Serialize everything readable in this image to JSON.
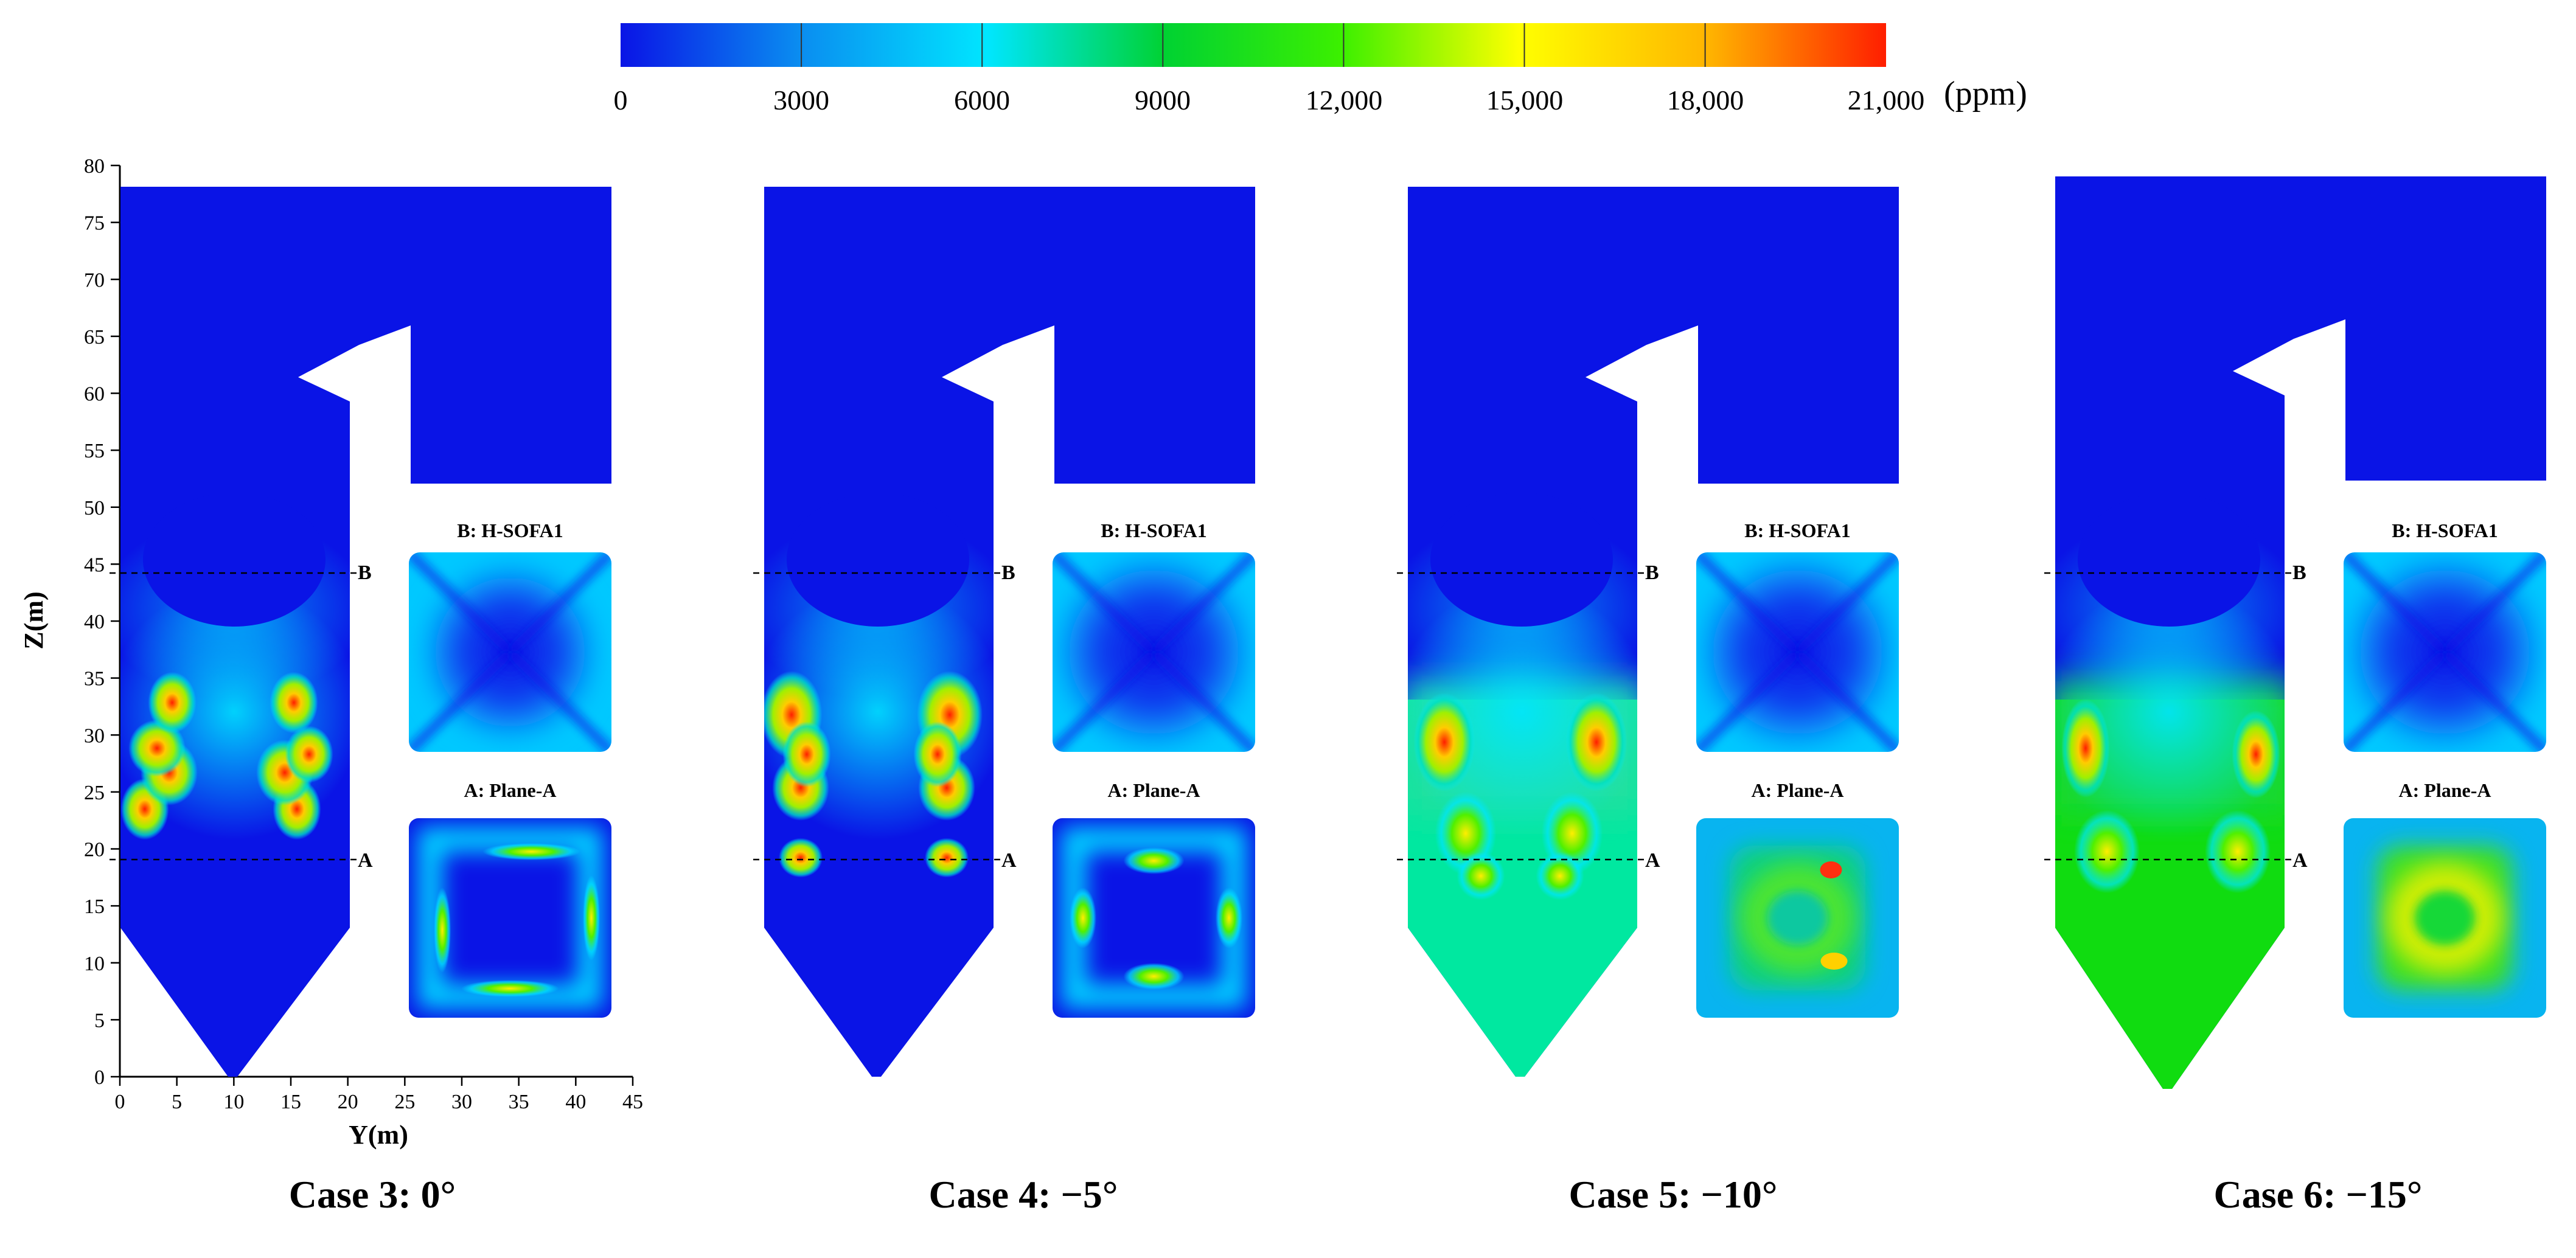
{
  "colorbar": {
    "unit": "(ppm)",
    "tick_labels": [
      "0",
      "3000",
      "6000",
      "9000",
      "12,000",
      "15,000",
      "18,000",
      "21,000"
    ],
    "colors": [
      "#0a14e6",
      "#0a8cf0",
      "#00e6ff",
      "#00d232",
      "#3cf000",
      "#ffff00",
      "#ffb400",
      "#ff1e00"
    ]
  },
  "axes": {
    "z_label": "Z(m)",
    "y_label": "Y(m)",
    "z_ticks": [
      "0",
      "5",
      "10",
      "15",
      "20",
      "25",
      "30",
      "35",
      "40",
      "45",
      "50",
      "55",
      "60",
      "65",
      "70",
      "75",
      "80"
    ],
    "y_ticks": [
      "0",
      "5",
      "10",
      "15",
      "20",
      "25",
      "30",
      "35",
      "40",
      "45"
    ]
  },
  "plane_markers": {
    "upper": "B",
    "lower": "A"
  },
  "cases": [
    {
      "title": "Case 3: 0°",
      "section_b": "B: H-SOFA1",
      "section_a": "A: Plane-A",
      "hopper_fill": "low"
    },
    {
      "title": "Case 4: −5°",
      "section_b": "B: H-SOFA1",
      "section_a": "A: Plane-A",
      "hopper_fill": "low"
    },
    {
      "title": "Case 5: −10°",
      "section_b": "B: H-SOFA1",
      "section_a": "A: Plane-A",
      "hopper_fill": "mid"
    },
    {
      "title": "Case 6: −15°",
      "section_b": "B: H-SOFA1",
      "section_a": "A: Plane-A",
      "hopper_fill": "high"
    }
  ]
}
